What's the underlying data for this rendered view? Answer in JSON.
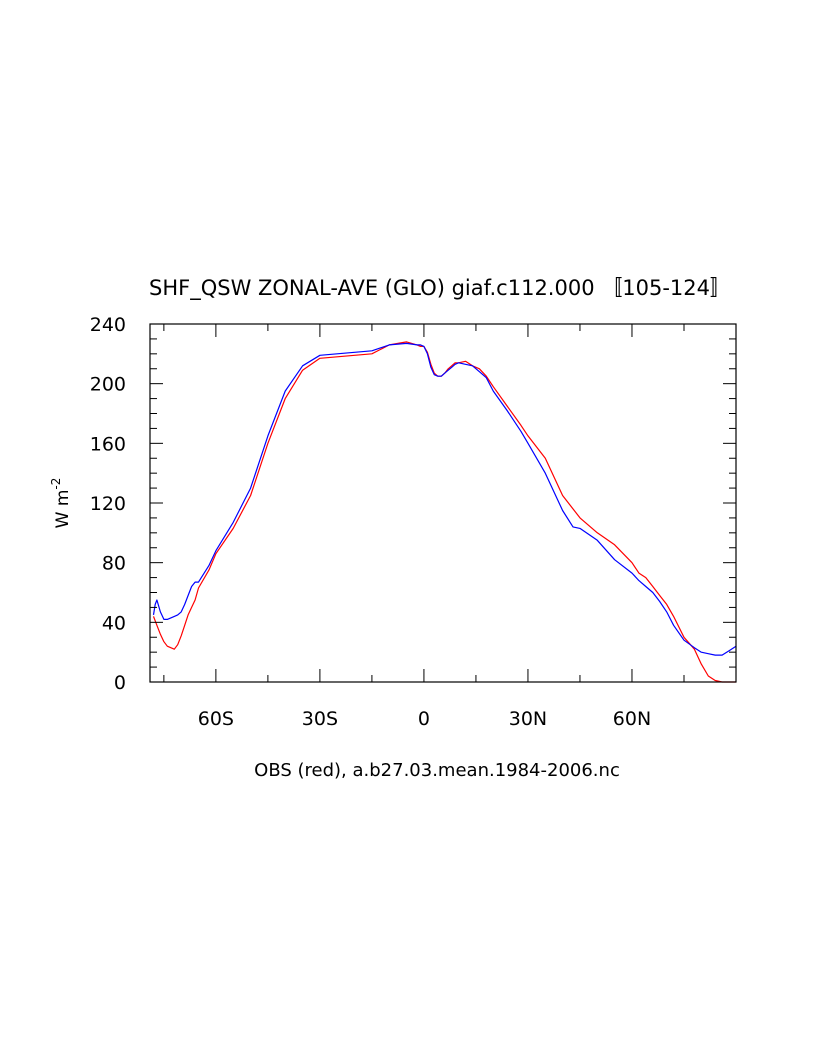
{
  "chart_data": {
    "type": "line",
    "title": "SHF_QSW ZONAL-AVE (GLO) giaf.c112.000 〚105-124〛",
    "xlabel": "OBS (red), a.b27.03.mean.1984-2006.nc",
    "ylabel": "W m",
    "ylabel_sup": "-2",
    "xlim": [
      -79,
      90
    ],
    "ylim": [
      0,
      240
    ],
    "y_major_ticks": [
      0,
      40,
      80,
      120,
      160,
      200,
      240
    ],
    "x_ticks": [
      {
        "value": -60,
        "label": "60S"
      },
      {
        "value": -30,
        "label": "30S"
      },
      {
        "value": 0,
        "label": "0"
      },
      {
        "value": 30,
        "label": "30N"
      },
      {
        "value": 60,
        "label": "60N"
      }
    ],
    "grid": false,
    "series": [
      {
        "color": "#ff0000",
        "x": [
          -78,
          -77,
          -76,
          -75,
          -74,
          -73,
          -72,
          -71,
          -70,
          -69,
          -68,
          -67,
          -66,
          -65,
          -62,
          -60,
          -55,
          -50,
          -45,
          -40,
          -35,
          -30,
          -25,
          -20,
          -15,
          -10,
          -5,
          -2,
          -1,
          0,
          1,
          2,
          3,
          4,
          5,
          6,
          7,
          8,
          9,
          10,
          12,
          14,
          16,
          18,
          20,
          24,
          28,
          30,
          35,
          40,
          45,
          50,
          55,
          60,
          62,
          64,
          66,
          68,
          70,
          72,
          75,
          78,
          80,
          82,
          84,
          86,
          88,
          90
        ],
        "y": [
          44,
          38,
          32,
          27,
          24,
          23,
          22,
          25,
          31,
          38,
          45,
          50,
          55,
          63,
          75,
          86,
          103,
          125,
          160,
          190,
          209,
          217,
          218,
          219,
          220,
          226,
          228,
          226,
          225,
          225,
          221,
          213,
          207,
          205,
          205,
          207,
          210,
          212,
          214,
          214,
          215,
          212,
          210,
          205,
          198,
          185,
          172,
          165,
          150,
          125,
          110,
          100,
          92,
          80,
          73,
          70,
          64,
          58,
          52,
          44,
          30,
          22,
          12,
          4,
          1,
          0,
          0,
          0
        ],
        "name": ""
      },
      {
        "color": "#0000ff",
        "x": [
          -78,
          -77.5,
          -77,
          -76,
          -75,
          -74,
          -73,
          -72,
          -71,
          -70,
          -69,
          -68,
          -67,
          -66,
          -65,
          -62,
          -60,
          -55,
          -50,
          -45,
          -40,
          -35,
          -30,
          -25,
          -20,
          -15,
          -10,
          -5,
          -2,
          -1,
          0,
          1,
          2,
          3,
          4,
          5,
          6,
          7,
          8,
          9,
          10,
          12,
          14,
          16,
          18,
          20,
          24,
          28,
          30,
          35,
          40,
          43,
          45,
          50,
          55,
          60,
          62,
          64,
          66,
          68,
          70,
          72,
          75,
          78,
          80,
          82,
          84,
          86,
          88,
          90
        ],
        "y": [
          45,
          52,
          55,
          47,
          42,
          42,
          43,
          44,
          45,
          47,
          52,
          58,
          64,
          67,
          67,
          78,
          88,
          107,
          130,
          165,
          195,
          212,
          219,
          220,
          221,
          222,
          226,
          227,
          226,
          226,
          225,
          220,
          211,
          206,
          205,
          205,
          207,
          209,
          211,
          213,
          214,
          213,
          212,
          208,
          204,
          195,
          182,
          168,
          160,
          140,
          115,
          104,
          103,
          95,
          82,
          73,
          68,
          64,
          60,
          54,
          47,
          38,
          28,
          23,
          20,
          19,
          18,
          18,
          21,
          24
        ],
        "name": ""
      }
    ]
  }
}
